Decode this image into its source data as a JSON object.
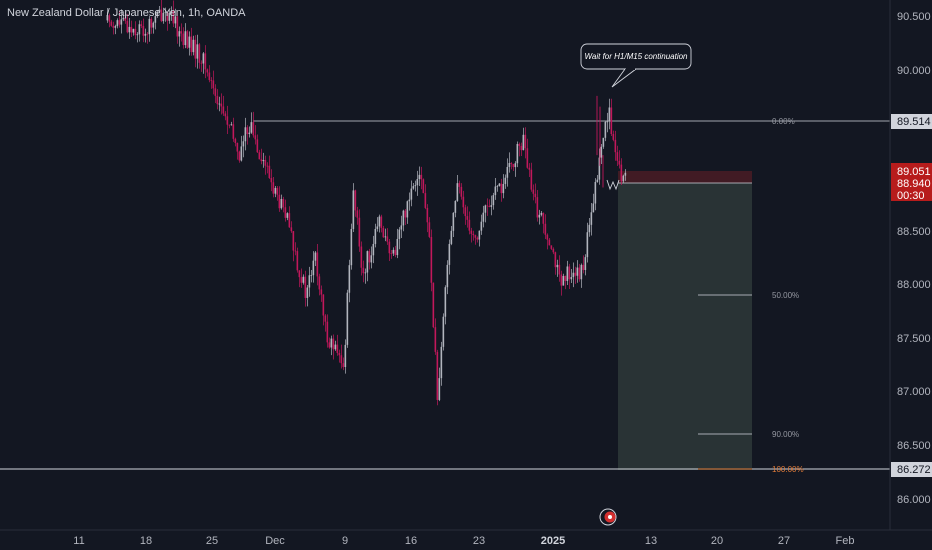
{
  "header": {
    "symbol_title": "New Zealand Dollar / Japanese Yen, 1h, OANDA"
  },
  "colors": {
    "background": "#131722",
    "up_candle": "#b2b5be",
    "down_candle": "#c2185b",
    "axis_text": "#b2b5be",
    "level_line": "#d1d4dc",
    "stop_zone": "#4a1c24",
    "target_zone": "#2a3537",
    "red_price_box": "#b71c1c",
    "gray_price_box": "#363a45"
  },
  "chart_data": {
    "type": "candlestick",
    "symbol": "NZDJPY",
    "interval": "1h",
    "source": "OANDA",
    "y_ticks": [
      "90.500",
      "90.000",
      "88.500",
      "88.000",
      "87.500",
      "87.000",
      "86.500",
      "86.000"
    ],
    "ylim": [
      85.8,
      90.7
    ],
    "x_ticks": [
      "11",
      "18",
      "25",
      "Dec",
      "9",
      "16",
      "23",
      "2025",
      "13",
      "20",
      "27",
      "Feb"
    ],
    "x_ticks_bold": [
      "2025"
    ],
    "price_path": [
      {
        "x": "Nov 14",
        "close": 90.45
      },
      {
        "x": "Nov 18",
        "close": 90.35
      },
      {
        "x": "Nov 20",
        "close": 90.55
      },
      {
        "x": "Nov 22",
        "close": 90.3
      },
      {
        "x": "Nov 24",
        "close": 90.1
      },
      {
        "x": "Nov 26",
        "close": 89.65
      },
      {
        "x": "Nov 28",
        "close": 89.2
      },
      {
        "x": "Nov 29",
        "close": 89.5
      },
      {
        "x": "Dec 2",
        "close": 88.8
      },
      {
        "x": "Dec 3",
        "close": 88.6
      },
      {
        "x": "Dec 5",
        "close": 87.9
      },
      {
        "x": "Dec 6",
        "close": 88.25
      },
      {
        "x": "Dec 7",
        "close": 87.6
      },
      {
        "x": "Dec 9",
        "close": 87.2
      },
      {
        "x": "Dec 10",
        "close": 88.9
      },
      {
        "x": "Dec 11",
        "close": 88.1
      },
      {
        "x": "Dec 13",
        "close": 88.6
      },
      {
        "x": "Dec 14",
        "close": 88.2
      },
      {
        "x": "Dec 16",
        "close": 88.85
      },
      {
        "x": "Dec 17",
        "close": 89.1
      },
      {
        "x": "Dec 18",
        "close": 88.5
      },
      {
        "x": "Dec 19",
        "close": 86.85
      },
      {
        "x": "Dec 20",
        "close": 88.3
      },
      {
        "x": "Dec 21",
        "close": 88.9
      },
      {
        "x": "Dec 23",
        "close": 88.4
      },
      {
        "x": "Dec 24",
        "close": 88.7
      },
      {
        "x": "Dec 26",
        "close": 88.95
      },
      {
        "x": "Dec 28",
        "close": 89.35
      },
      {
        "x": "Dec 29",
        "close": 88.8
      },
      {
        "x": "Dec 31",
        "close": 88.4
      },
      {
        "x": "Jan 1",
        "close": 87.95
      },
      {
        "x": "Jan 2",
        "close": 88.15
      },
      {
        "x": "Jan 3",
        "close": 88.05
      },
      {
        "x": "Jan 4",
        "close": 88.5
      },
      {
        "x": "Jan 5",
        "close": 89.1
      },
      {
        "x": "Jan 6",
        "close": 89.65
      },
      {
        "x": "Jan 7",
        "close": 89.05
      },
      {
        "x": "Jan 8",
        "close": 88.95
      }
    ],
    "levels": [
      {
        "label": "0.00%",
        "price": "89.514"
      },
      {
        "label": "50.00%",
        "price": 87.89
      },
      {
        "label": "90.00%",
        "price": 86.59
      },
      {
        "label": "100.00%",
        "price": "86.272"
      }
    ],
    "price_boxes": [
      {
        "value": "89.514",
        "style": "gray"
      },
      {
        "value": "89.051",
        "style": "red"
      },
      {
        "value": "88.940",
        "style": "red"
      },
      {
        "value": "00:30",
        "style": "red"
      },
      {
        "value": "86.272",
        "style": "gray"
      }
    ],
    "annotation": "Wait for H1/M15 continuation",
    "position_tool": {
      "entry": 88.94,
      "stop": 89.051,
      "target": 86.272
    }
  }
}
